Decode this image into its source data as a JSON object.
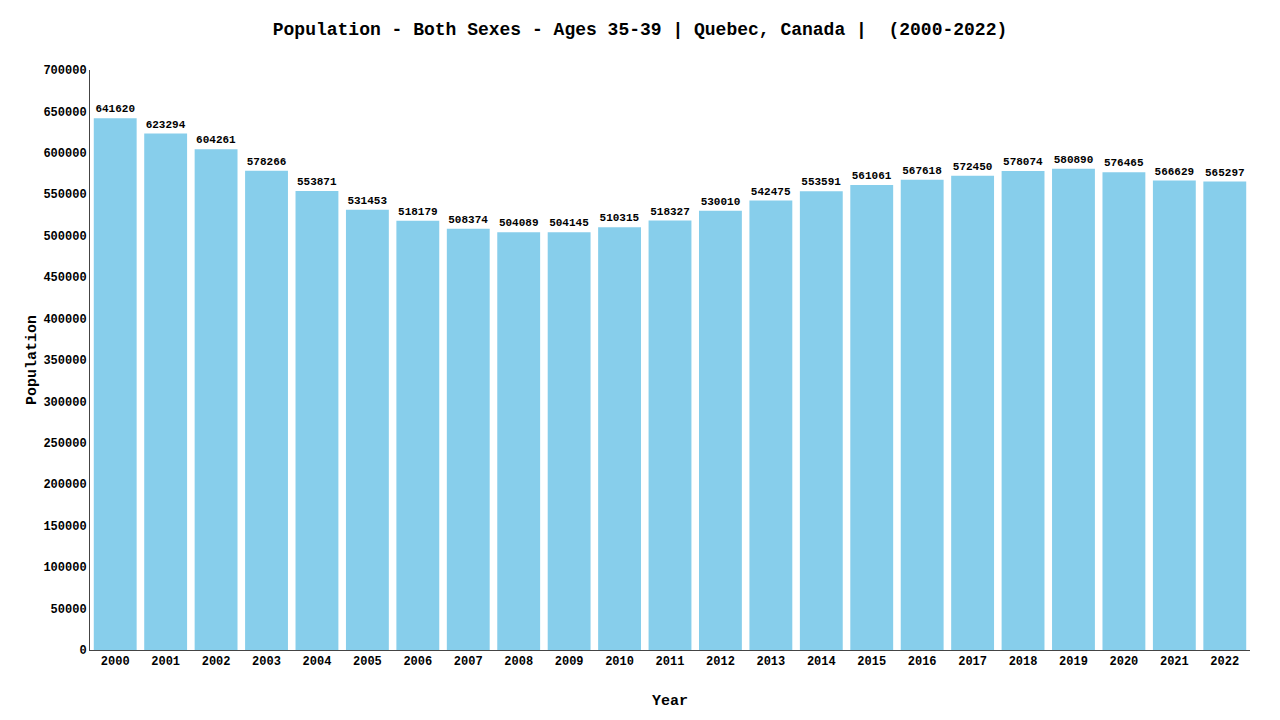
{
  "chart_data": {
    "type": "bar",
    "title": "Population - Both Sexes - Ages 35-39 | Quebec, Canada |  (2000-2022)",
    "x_label": "Year",
    "y_label": "Population",
    "categories": [
      "2000",
      "2001",
      "2002",
      "2003",
      "2004",
      "2005",
      "2006",
      "2007",
      "2008",
      "2009",
      "2010",
      "2011",
      "2012",
      "2013",
      "2014",
      "2015",
      "2016",
      "2017",
      "2018",
      "2019",
      "2020",
      "2021",
      "2022"
    ],
    "values": [
      641620,
      623294,
      604261,
      578266,
      553871,
      531453,
      518179,
      508374,
      504089,
      504145,
      510315,
      518327,
      530010,
      542475,
      553591,
      561061,
      567618,
      572450,
      578074,
      580890,
      576465,
      566629,
      565297
    ],
    "color": "#87ceeb",
    "ylim": [
      0,
      700000
    ],
    "yticks": [
      0,
      50000,
      100000,
      150000,
      200000,
      250000,
      300000,
      350000,
      400000,
      450000,
      500000,
      550000,
      600000,
      650000,
      700000
    ],
    "grid": false,
    "data_labels": true
  }
}
